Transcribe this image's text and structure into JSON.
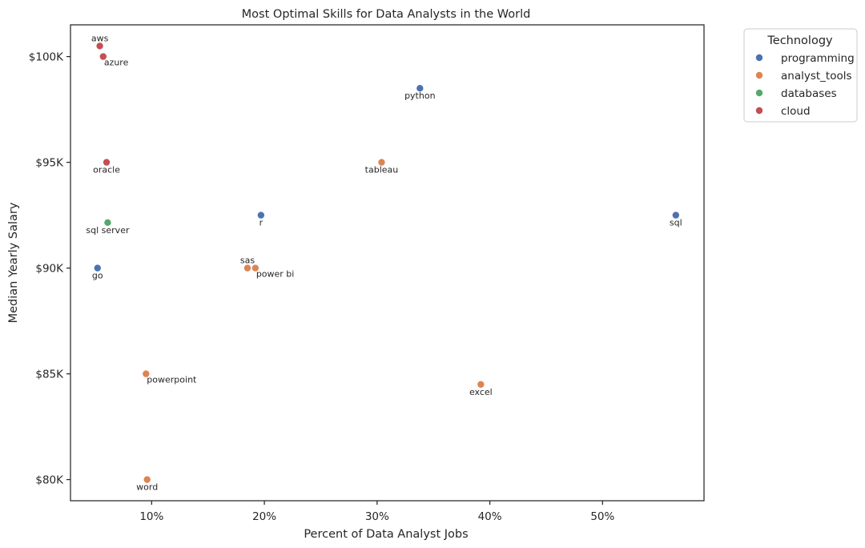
{
  "chart_data": {
    "type": "scatter",
    "title": "Most Optimal Skills for Data Analysts in the World",
    "xlabel": "Percent of Data Analyst Jobs",
    "ylabel": "Median Yearly Salary",
    "xlim": [
      2.8,
      59.0
    ],
    "ylim": [
      79000,
      101500
    ],
    "x_ticks": [
      10,
      20,
      30,
      40,
      50
    ],
    "x_tick_labels": [
      "10%",
      "20%",
      "30%",
      "40%",
      "50%"
    ],
    "y_ticks": [
      80000,
      85000,
      90000,
      95000,
      100000
    ],
    "y_tick_labels": [
      "$80K",
      "$85K",
      "$90K",
      "$95K",
      "$100K"
    ],
    "grid": false,
    "legend": {
      "title": "Technology",
      "placement": "outside-top-right",
      "entries": [
        {
          "name": "programming",
          "color": "#4c72b0"
        },
        {
          "name": "analyst_tools",
          "color": "#dd8452"
        },
        {
          "name": "databases",
          "color": "#55a868"
        },
        {
          "name": "cloud",
          "color": "#c44e52"
        }
      ]
    },
    "points": [
      {
        "label": "aws",
        "x": 5.4,
        "y": 100500,
        "category": "cloud",
        "label_pos": "above"
      },
      {
        "label": "azure",
        "x": 5.7,
        "y": 100000,
        "category": "cloud",
        "label_pos": "below-right"
      },
      {
        "label": "oracle",
        "x": 6.0,
        "y": 95000,
        "category": "cloud",
        "label_pos": "below"
      },
      {
        "label": "sql server",
        "x": 6.1,
        "y": 92150,
        "category": "databases",
        "label_pos": "below"
      },
      {
        "label": "go",
        "x": 5.2,
        "y": 90000,
        "category": "programming",
        "label_pos": "below"
      },
      {
        "label": "r",
        "x": 19.7,
        "y": 92500,
        "category": "programming",
        "label_pos": "below"
      },
      {
        "label": "python",
        "x": 33.8,
        "y": 98500,
        "category": "programming",
        "label_pos": "below"
      },
      {
        "label": "sql",
        "x": 56.5,
        "y": 92500,
        "category": "programming",
        "label_pos": "below"
      },
      {
        "label": "tableau",
        "x": 30.4,
        "y": 95000,
        "category": "analyst_tools",
        "label_pos": "below"
      },
      {
        "label": "sas",
        "x": 18.5,
        "y": 90000,
        "category": "analyst_tools",
        "label_pos": "above"
      },
      {
        "label": "power bi",
        "x": 19.2,
        "y": 90000,
        "category": "analyst_tools",
        "label_pos": "below-right"
      },
      {
        "label": "powerpoint",
        "x": 9.5,
        "y": 85000,
        "category": "analyst_tools",
        "label_pos": "below-right"
      },
      {
        "label": "excel",
        "x": 39.2,
        "y": 84500,
        "category": "analyst_tools",
        "label_pos": "below"
      },
      {
        "label": "word",
        "x": 9.6,
        "y": 80000,
        "category": "analyst_tools",
        "label_pos": "below"
      }
    ]
  }
}
